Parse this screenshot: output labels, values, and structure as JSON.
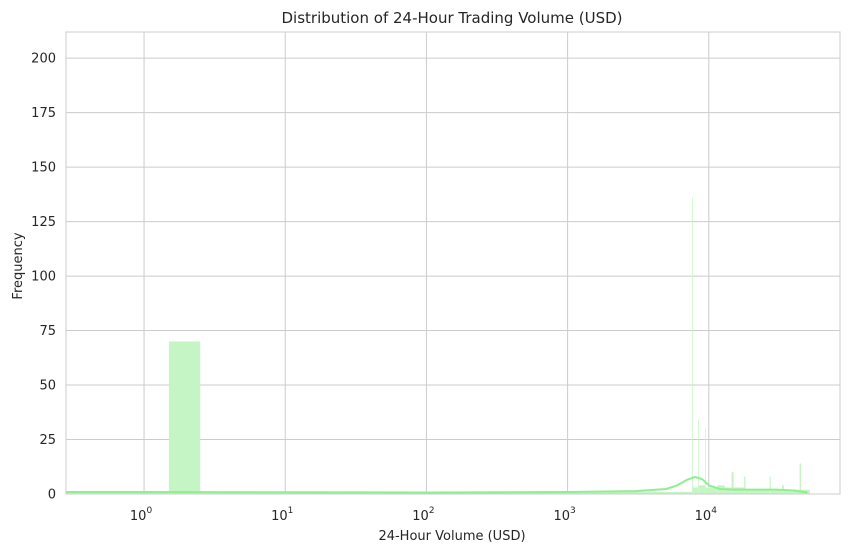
{
  "chart_data": {
    "type": "bar",
    "title": "Distribution of 24-Hour Trading Volume (USD)",
    "xlabel": "24-Hour Volume (USD)",
    "ylabel": "Frequency",
    "x_scale": "log",
    "xlim": [
      0.28,
      85000
    ],
    "ylim": [
      0,
      212
    ],
    "y_ticks": [
      "0",
      "25",
      "50",
      "75",
      "100",
      "125",
      "150",
      "175",
      "200"
    ],
    "x_ticks": [
      {
        "base": "10",
        "exp": "0",
        "value": 1
      },
      {
        "base": "10",
        "exp": "1",
        "value": 10
      },
      {
        "base": "10",
        "exp": "2",
        "value": 100
      },
      {
        "base": "10",
        "exp": "3",
        "value": 1000
      },
      {
        "base": "10",
        "exp": "4",
        "value": 10000
      }
    ],
    "grid": true,
    "colors": {
      "bar": "#c5f5c5",
      "kde": "#90ee90",
      "grid": "#cccccc",
      "spine": "#cccccc",
      "background": "#ffffff"
    },
    "series": [
      {
        "type": "histogram",
        "bins": [
          {
            "x0": 0.28,
            "x1": 1.5,
            "count": 1
          },
          {
            "x0": 1.5,
            "x1": 2.5,
            "count": 70
          },
          {
            "x0": 2.5,
            "x1": 7600,
            "count": 1
          },
          {
            "x0": 7600,
            "x1": 7700,
            "count": 136
          },
          {
            "x0": 7700,
            "x1": 8400,
            "count": 3
          },
          {
            "x0": 8400,
            "x1": 8500,
            "count": 34
          },
          {
            "x0": 8500,
            "x1": 9400,
            "count": 4
          },
          {
            "x0": 9400,
            "x1": 9500,
            "count": 30
          },
          {
            "x0": 9500,
            "x1": 11500,
            "count": 3
          },
          {
            "x0": 11500,
            "x1": 13000,
            "count": 4
          },
          {
            "x0": 13000,
            "x1": 14500,
            "count": 3
          },
          {
            "x0": 14500,
            "x1": 15000,
            "count": 10
          },
          {
            "x0": 15000,
            "x1": 17800,
            "count": 3
          },
          {
            "x0": 17800,
            "x1": 18200,
            "count": 8
          },
          {
            "x0": 18200,
            "x1": 27000,
            "count": 2
          },
          {
            "x0": 27000,
            "x1": 27500,
            "count": 8
          },
          {
            "x0": 27500,
            "x1": 33000,
            "count": 2
          },
          {
            "x0": 33000,
            "x1": 34000,
            "count": 4
          },
          {
            "x0": 34000,
            "x1": 44000,
            "count": 2
          },
          {
            "x0": 44000,
            "x1": 45000,
            "count": 14
          },
          {
            "x0": 45000,
            "x1": 52000,
            "count": 2
          }
        ]
      },
      {
        "type": "kde",
        "x": [
          0.28,
          1,
          10,
          100,
          1000,
          3000,
          5000,
          6000,
          7000,
          8000,
          9000,
          10000,
          12000,
          15000,
          20000,
          30000,
          40000,
          50000
        ],
        "values": [
          0.9,
          0.9,
          0.8,
          0.7,
          0.9,
          1.3,
          2.3,
          4.0,
          6.5,
          7.8,
          6.8,
          4.0,
          2.3,
          2.0,
          2.0,
          2.0,
          1.6,
          0.7
        ]
      }
    ]
  }
}
